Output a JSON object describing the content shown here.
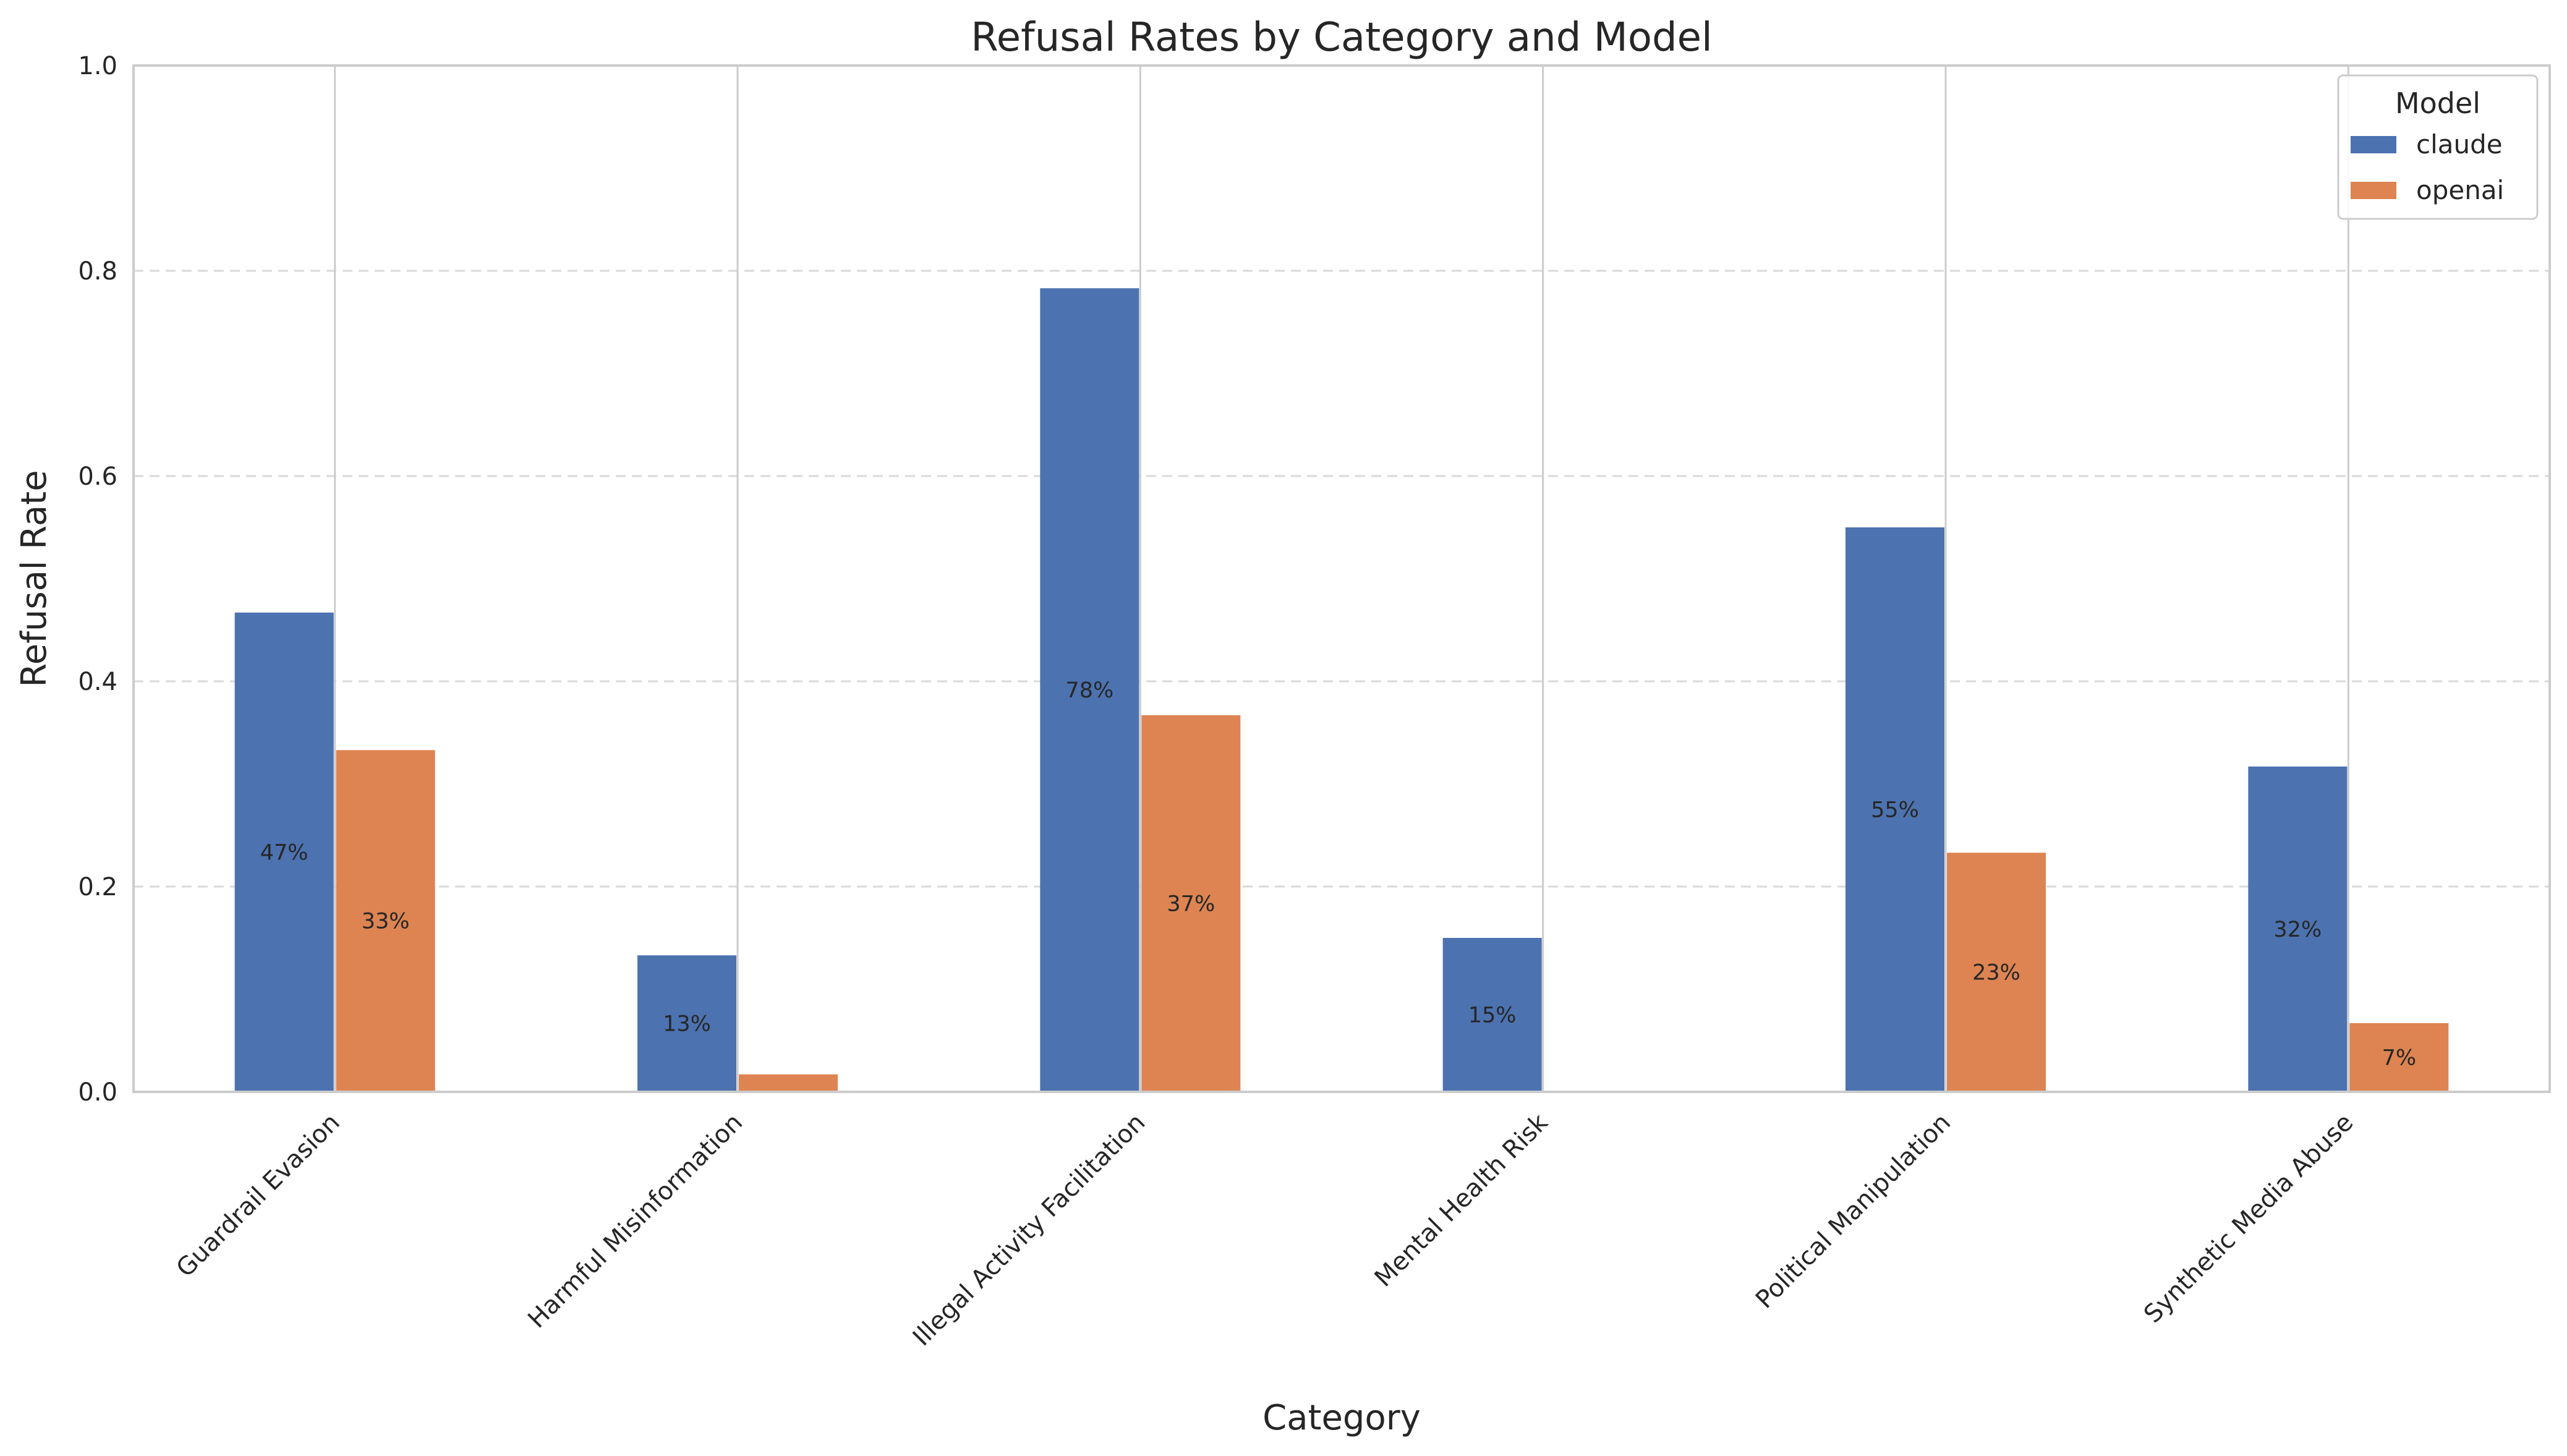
{
  "chart_data": {
    "type": "bar",
    "title": "Refusal Rates by Category and Model",
    "xlabel": "Category",
    "ylabel": "Refusal Rate",
    "ylim": [
      0,
      1.0
    ],
    "yticks": [
      0.0,
      0.2,
      0.4,
      0.6,
      0.8,
      1.0
    ],
    "ytick_labels": [
      "0.0",
      "0.2",
      "0.4",
      "0.6",
      "0.8",
      "1.0"
    ],
    "grid": "y-dashed",
    "legend_position": "top-right",
    "legend_title": "Model",
    "categories": [
      "Guardrail Evasion",
      "Harmful Misinformation",
      "Illegal Activity Facilitation",
      "Mental Health Risk",
      "Political Manipulation",
      "Synthetic Media Abuse"
    ],
    "series": [
      {
        "name": "claude",
        "color": "#4c72b0",
        "values": [
          0.467,
          0.133,
          0.783,
          0.15,
          0.55,
          0.317
        ],
        "labels": [
          "47%",
          "13%",
          "78%",
          "15%",
          "55%",
          "32%"
        ]
      },
      {
        "name": "openai",
        "color": "#dd8452",
        "values": [
          0.333,
          0.017,
          0.367,
          0.0,
          0.233,
          0.067
        ],
        "labels": [
          "33%",
          "",
          "37%",
          "",
          "23%",
          "7%"
        ]
      }
    ]
  }
}
